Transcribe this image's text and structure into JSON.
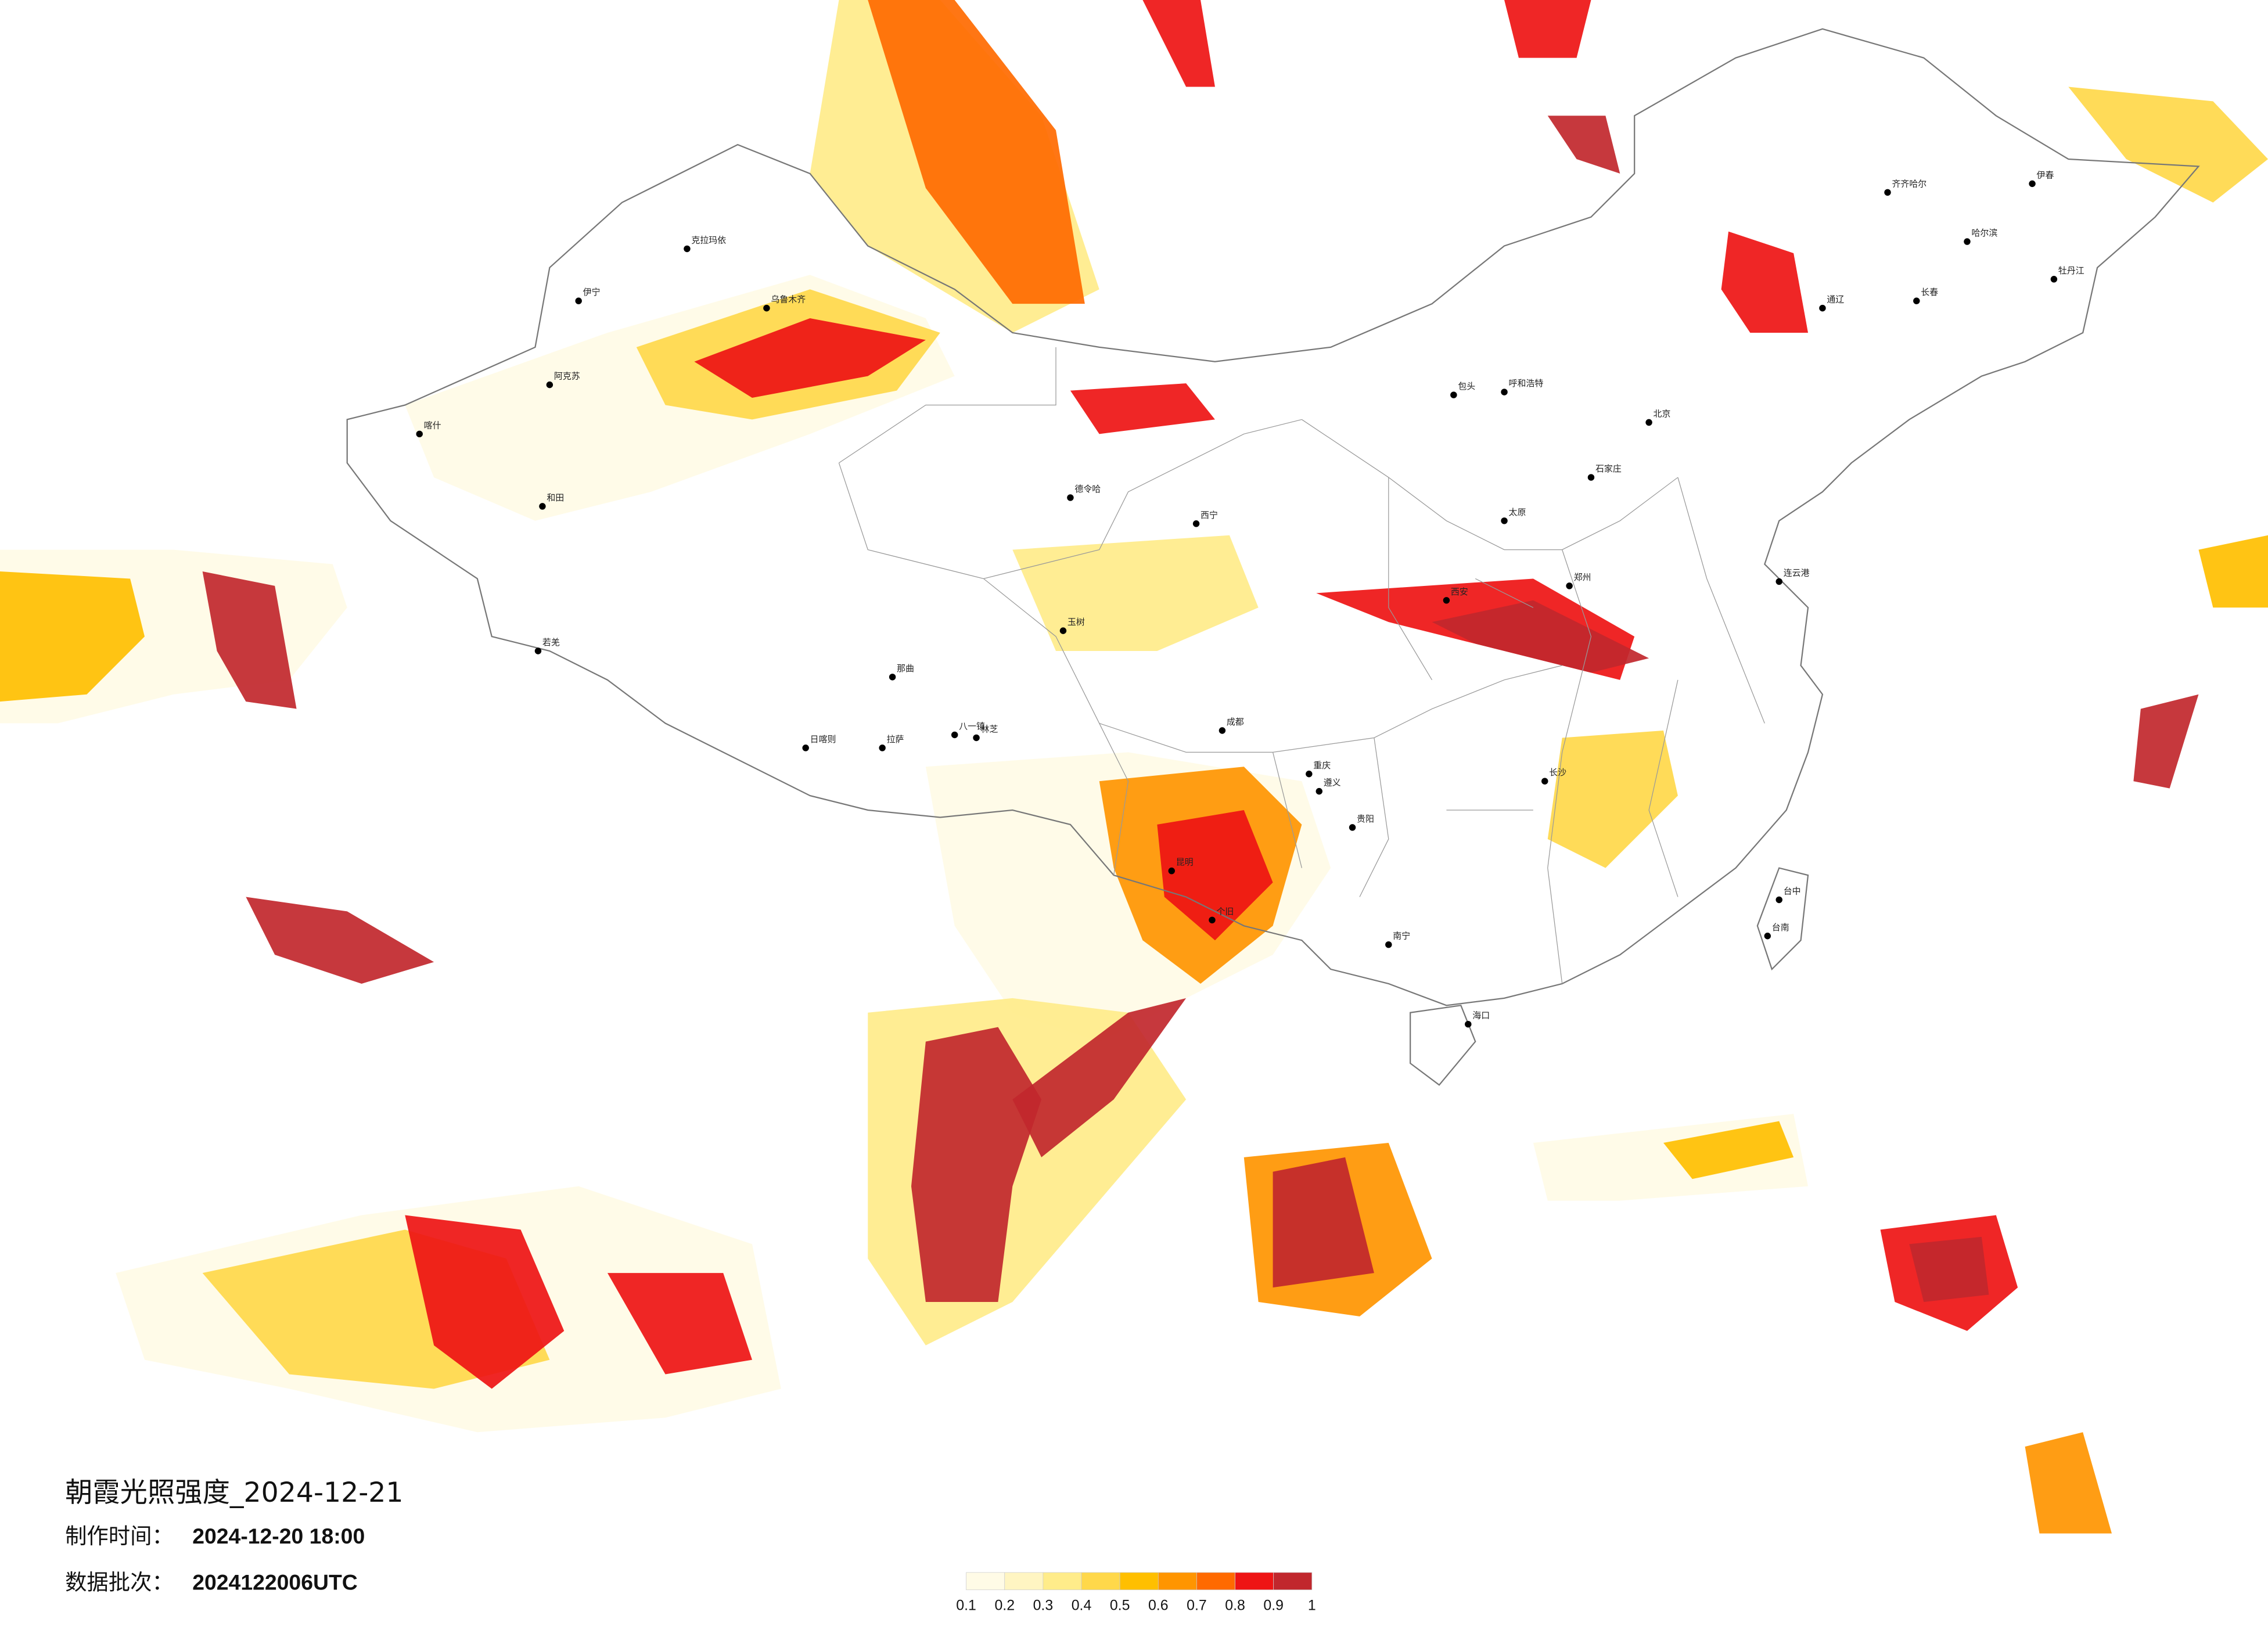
{
  "header": {
    "title": "朝霞光照强度_2024-12-21"
  },
  "meta": [
    {
      "label": "制作时间：",
      "value": "2024-12-20 18:00"
    },
    {
      "label": "数据批次：",
      "value": "2024122006UTC"
    }
  ],
  "legend": {
    "ticks": [
      0.1,
      0.2,
      0.3,
      0.4,
      0.5,
      0.6,
      0.7,
      0.8,
      0.9,
      1
    ],
    "colors": [
      "#fffbe6",
      "#fff5c2",
      "#ffec8a",
      "#ffd84a",
      "#ffbf00",
      "#ff9500",
      "#ff6a00",
      "#ee1414",
      "#c1272d"
    ]
  },
  "cities": [
    "克拉玛依",
    "伊宁",
    "阿克苏",
    "喀什",
    "和田",
    "若羌",
    "德令哈",
    "西宁",
    "玉树",
    "日喀则",
    "拉萨",
    "林芝",
    "八一镇",
    "那曲",
    "呼和浩特",
    "包头",
    "北京",
    "石家庄",
    "太原",
    "郑州",
    "西安",
    "成都",
    "重庆",
    "贵阳",
    "昆明",
    "南宁",
    "海口",
    "齐齐哈尔",
    "哈尔滨",
    "长春",
    "伊春",
    "牡丹江",
    "通辽",
    "台中",
    "台南",
    "连云港",
    "长沙",
    "遵义",
    "个旧",
    "乌鲁木齐"
  ]
}
